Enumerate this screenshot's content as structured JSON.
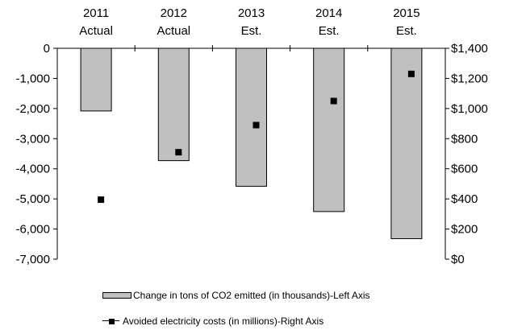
{
  "chart_data": {
    "type": "bar",
    "categories": [
      [
        "2011",
        "Actual"
      ],
      [
        "2012",
        "Actual"
      ],
      [
        "2013",
        "Est."
      ],
      [
        "2014",
        "Est."
      ],
      [
        "2015",
        "Est."
      ]
    ],
    "series": [
      {
        "name": "Change in tons of CO2 emitted (in thousands)-Left Axis",
        "type": "bar",
        "axis": "left",
        "color": "#c0c0c0",
        "values": [
          -2080,
          -3730,
          -4580,
          -5420,
          -6320
        ]
      },
      {
        "name": "Avoided electricity costs (in millions)-Right Axis",
        "type": "scatter",
        "axis": "right",
        "color": "#000000",
        "values": [
          395,
          710,
          890,
          1050,
          1230
        ]
      }
    ],
    "left_axis": {
      "range": [
        -7000,
        0
      ],
      "ticks": [
        0,
        -1000,
        -2000,
        -3000,
        -4000,
        -5000,
        -6000,
        -7000
      ],
      "tick_labels": [
        "0",
        "-1,000",
        "-2,000",
        "-3,000",
        "-4,000",
        "-5,000",
        "-6,000",
        "-7,000"
      ]
    },
    "right_axis": {
      "range": [
        0,
        1400
      ],
      "ticks": [
        1400,
        1200,
        1000,
        800,
        600,
        400,
        200,
        0
      ],
      "tick_labels": [
        "$1,400",
        "$1,200",
        "$1,000",
        "$800",
        "$600",
        "$400",
        "$200",
        "$0"
      ]
    },
    "grid": false,
    "legend_position": "bottom"
  },
  "legend": {
    "bar_label": "Change in tons of CO2 emitted (in thousands)-Left Axis",
    "line_label": "Avoided electricity costs (in millions)-Right Axis"
  }
}
